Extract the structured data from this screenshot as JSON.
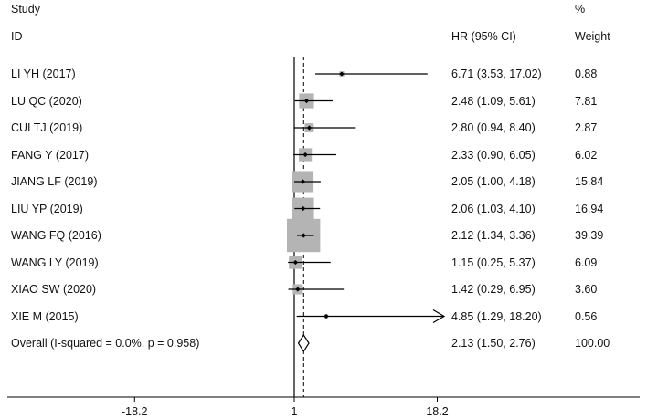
{
  "header": {
    "study_label": "Study",
    "id_label": "ID",
    "hr_label": "HR (95% CI)",
    "pct_label": "%",
    "weight_label": "Weight"
  },
  "chart_data": {
    "type": "forest",
    "title": "",
    "xlabel": "",
    "ylabel": "",
    "null_value": 1,
    "xlim": [
      -18.2,
      18.2
    ],
    "x_ticks": [
      -18.2,
      1,
      18.2
    ],
    "x_tick_labels": [
      "-18.2",
      "1",
      "18.2"
    ],
    "pooled_estimate_line": 2.13,
    "studies": [
      {
        "name": "LI YH (2017)",
        "hr": 6.71,
        "lower": 3.53,
        "upper": 17.02,
        "ci_text": "6.71 (3.53, 17.02)",
        "weight": 0.88,
        "weight_text": "0.88"
      },
      {
        "name": "LU QC (2020)",
        "hr": 2.48,
        "lower": 1.09,
        "upper": 5.61,
        "ci_text": "2.48 (1.09, 5.61)",
        "weight": 7.81,
        "weight_text": "7.81"
      },
      {
        "name": "CUI TJ (2019)",
        "hr": 2.8,
        "lower": 0.94,
        "upper": 8.4,
        "ci_text": "2.80 (0.94, 8.40)",
        "weight": 2.87,
        "weight_text": "2.87"
      },
      {
        "name": "FANG Y (2017)",
        "hr": 2.33,
        "lower": 0.9,
        "upper": 6.05,
        "ci_text": "2.33 (0.90, 6.05)",
        "weight": 6.02,
        "weight_text": "6.02"
      },
      {
        "name": "JIANG LF (2019)",
        "hr": 2.05,
        "lower": 1.0,
        "upper": 4.18,
        "ci_text": "2.05 (1.00, 4.18)",
        "weight": 15.84,
        "weight_text": "15.84"
      },
      {
        "name": "LIU YP (2019)",
        "hr": 2.06,
        "lower": 1.03,
        "upper": 4.1,
        "ci_text": "2.06 (1.03, 4.10)",
        "weight": 16.94,
        "weight_text": "16.94"
      },
      {
        "name": "WANG FQ (2016)",
        "hr": 2.12,
        "lower": 1.34,
        "upper": 3.36,
        "ci_text": "2.12 (1.34, 3.36)",
        "weight": 39.39,
        "weight_text": "39.39"
      },
      {
        "name": "WANG LY (2019)",
        "hr": 1.15,
        "lower": 0.25,
        "upper": 5.37,
        "ci_text": "1.15 (0.25, 5.37)",
        "weight": 6.09,
        "weight_text": "6.09"
      },
      {
        "name": "XIAO SW (2020)",
        "hr": 1.42,
        "lower": 0.29,
        "upper": 6.95,
        "ci_text": "1.42 (0.29, 6.95)",
        "weight": 3.6,
        "weight_text": "3.60"
      },
      {
        "name": "XIE M (2015)",
        "hr": 4.85,
        "lower": 1.29,
        "upper": 18.2,
        "ci_text": "4.85 (1.29, 18.20)",
        "weight": 0.56,
        "weight_text": "0.56",
        "arrow_right": true
      }
    ],
    "overall": {
      "label": "Overall  (I-squared = 0.0%, p = 0.958)",
      "hr": 2.13,
      "lower": 1.5,
      "upper": 2.76,
      "ci_text": "2.13 (1.50, 2.76)",
      "weight": 100.0,
      "weight_text": "100.00"
    }
  }
}
